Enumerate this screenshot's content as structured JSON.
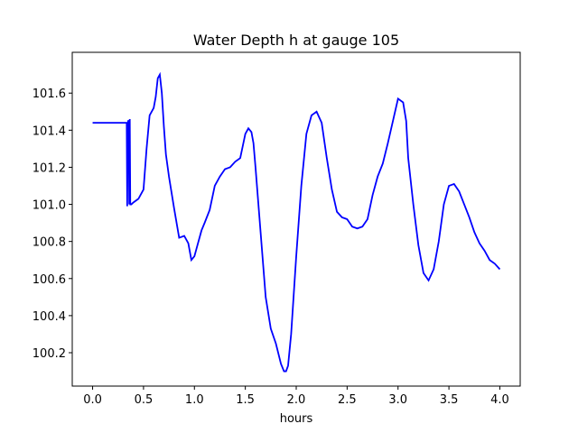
{
  "chart_data": {
    "type": "line",
    "title": "Water Depth h at gauge 105",
    "xlabel": "hours",
    "ylabel": "",
    "xlim": [
      -0.2,
      4.2
    ],
    "ylim": [
      100.02,
      101.82
    ],
    "x_ticks": [
      0.0,
      0.5,
      1.0,
      1.5,
      2.0,
      2.5,
      3.0,
      3.5,
      4.0
    ],
    "x_tick_labels": [
      "0.0",
      "0.5",
      "1.0",
      "1.5",
      "2.0",
      "2.5",
      "3.0",
      "3.5",
      "4.0"
    ],
    "y_ticks": [
      100.2,
      100.4,
      100.6,
      100.8,
      101.0,
      101.2,
      101.4,
      101.6
    ],
    "y_tick_labels": [
      "100.2",
      "100.4",
      "100.6",
      "100.8",
      "101.0",
      "101.2",
      "101.4",
      "101.6"
    ],
    "grid": false,
    "series": [
      {
        "color": "#0000ff",
        "x": [
          0.0,
          0.1,
          0.2,
          0.3,
          0.33,
          0.335,
          0.34,
          0.345,
          0.35,
          0.355,
          0.36,
          0.365,
          0.37,
          0.38,
          0.4,
          0.45,
          0.5,
          0.53,
          0.56,
          0.6,
          0.62,
          0.64,
          0.66,
          0.68,
          0.7,
          0.72,
          0.75,
          0.8,
          0.85,
          0.9,
          0.94,
          0.97,
          1.0,
          1.03,
          1.07,
          1.1,
          1.15,
          1.2,
          1.25,
          1.3,
          1.35,
          1.4,
          1.45,
          1.5,
          1.53,
          1.56,
          1.58,
          1.6,
          1.65,
          1.7,
          1.75,
          1.8,
          1.85,
          1.88,
          1.9,
          1.92,
          1.95,
          2.0,
          2.05,
          2.1,
          2.15,
          2.2,
          2.25,
          2.3,
          2.35,
          2.4,
          2.45,
          2.5,
          2.55,
          2.6,
          2.65,
          2.7,
          2.75,
          2.8,
          2.85,
          2.9,
          2.95,
          3.0,
          3.05,
          3.08,
          3.1,
          3.15,
          3.2,
          3.25,
          3.3,
          3.35,
          3.4,
          3.45,
          3.5,
          3.55,
          3.6,
          3.65,
          3.7,
          3.75,
          3.8,
          3.85,
          3.9,
          3.95,
          4.0
        ],
        "y": [
          101.44,
          101.44,
          101.44,
          101.44,
          101.44,
          101.44,
          100.99,
          101.44,
          101.45,
          101.45,
          101.0,
          101.46,
          101.0,
          101.0,
          101.01,
          101.03,
          101.08,
          101.3,
          101.48,
          101.52,
          101.58,
          101.68,
          101.7,
          101.6,
          101.42,
          101.27,
          101.15,
          100.98,
          100.82,
          100.83,
          100.79,
          100.7,
          100.72,
          100.78,
          100.86,
          100.9,
          100.97,
          101.1,
          101.15,
          101.19,
          101.2,
          101.23,
          101.25,
          101.38,
          101.41,
          101.39,
          101.33,
          101.2,
          100.85,
          100.5,
          100.33,
          100.25,
          100.14,
          100.1,
          100.1,
          100.13,
          100.3,
          100.72,
          101.1,
          101.38,
          101.48,
          101.5,
          101.44,
          101.25,
          101.08,
          100.96,
          100.93,
          100.92,
          100.88,
          100.87,
          100.88,
          100.92,
          101.05,
          101.15,
          101.22,
          101.33,
          101.45,
          101.57,
          101.55,
          101.45,
          101.25,
          101.0,
          100.78,
          100.63,
          100.59,
          100.65,
          100.8,
          101.0,
          101.1,
          101.11,
          101.07,
          101.0,
          100.93,
          100.85,
          100.79,
          100.75,
          100.7,
          100.68,
          100.65
        ]
      }
    ]
  }
}
